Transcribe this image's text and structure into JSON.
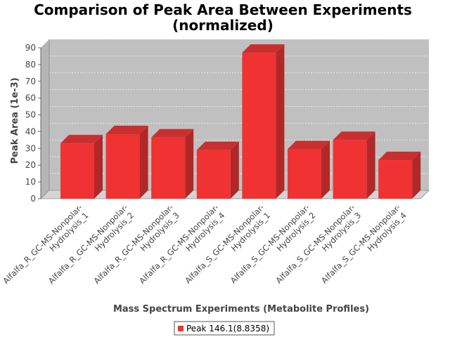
{
  "chart_data": {
    "type": "bar",
    "title_lines": [
      "Comparison of Peak Area Between Experiments",
      "(normalized)"
    ],
    "xlabel": "Mass Spectrum Experiments (Metabolite Profiles)",
    "ylabel": "Peak Area (1e-3)",
    "categories": [
      [
        "Alfalfa_R_GC-MS-Nonpolar-",
        "Hydrolysis_1"
      ],
      [
        "Alfalfa_R_GC-MS-Nonpolar-",
        "Hydrolysis_2"
      ],
      [
        "Alfalfa_R_GC-MS-Nonpolar-",
        "Hydrolysis_3"
      ],
      [
        "Alfalfa_R_GC-MS-Nonpolar-",
        "Hydrolysis_4"
      ],
      [
        "Alfalfa_S_GC-MS-Nonpolar-",
        "Hydrolysis_1"
      ],
      [
        "Alfalfa_S_GC-MS-Nonpolar-",
        "Hydrolysis_2"
      ],
      [
        "Alfalfa_S_GC-MS-Nonpolar-",
        "Hydrolysis_3"
      ],
      [
        "Alfalfa_S_GC-MS-Nonpolar-",
        "Hydrolysis_4"
      ]
    ],
    "series": [
      {
        "name": "Peak 146.1(8.8358)",
        "values": [
          33,
          38.5,
          36.5,
          29,
          87,
          29.5,
          35,
          23
        ]
      }
    ],
    "ylim": [
      0,
      90
    ],
    "yticks": [
      0,
      10,
      20,
      30,
      40,
      50,
      60,
      70,
      80,
      90
    ],
    "grid": true,
    "legend_position": "bottom",
    "colors": {
      "bar_front": "#f03232",
      "bar_side": "#b02828",
      "bar_top": "#c83030",
      "plot_back": "#c0c0c0",
      "plot_floor": "#d4d4d4",
      "grid": "#ffffff"
    }
  }
}
